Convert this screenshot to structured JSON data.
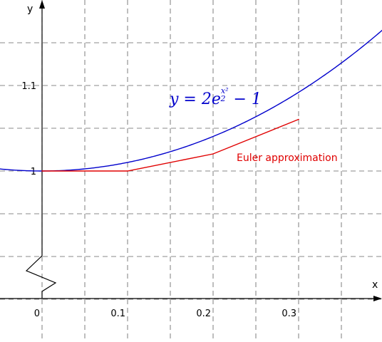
{
  "chart_data": {
    "type": "line",
    "xlabel": "x",
    "ylabel": "y",
    "xlim": [
      -0.05,
      0.4
    ],
    "ylim": [
      0.85,
      1.2
    ],
    "x_ticks": [
      {
        "value": 0,
        "label": "0"
      },
      {
        "value": 0.1,
        "label": "0.1"
      },
      {
        "value": 0.2,
        "label": "0.2"
      },
      {
        "value": 0.3,
        "label": "0.3"
      }
    ],
    "y_ticks": [
      {
        "value": 1.0,
        "label": "1"
      },
      {
        "value": 1.1,
        "label": "1.1"
      }
    ],
    "grid": true,
    "grid_step_x": 0.05,
    "grid_step_y": 0.05,
    "axis_break_on_y": true,
    "series": [
      {
        "name": "y = 2e^(x²/2) − 1",
        "label_parts": {
          "lhs": "y = 2e",
          "exp_num": "x²",
          "exp_den": "2",
          "tail": " − 1"
        },
        "color": "#0000cc",
        "function": "2*exp(x^2/2)-1",
        "x_range": [
          -0.05,
          0.4
        ]
      },
      {
        "name": "Euler approximation",
        "color": "#e00000",
        "x": [
          0,
          0.1,
          0.2,
          0.3
        ],
        "y": [
          1.0,
          1.0,
          1.02,
          1.0604
        ]
      }
    ]
  }
}
